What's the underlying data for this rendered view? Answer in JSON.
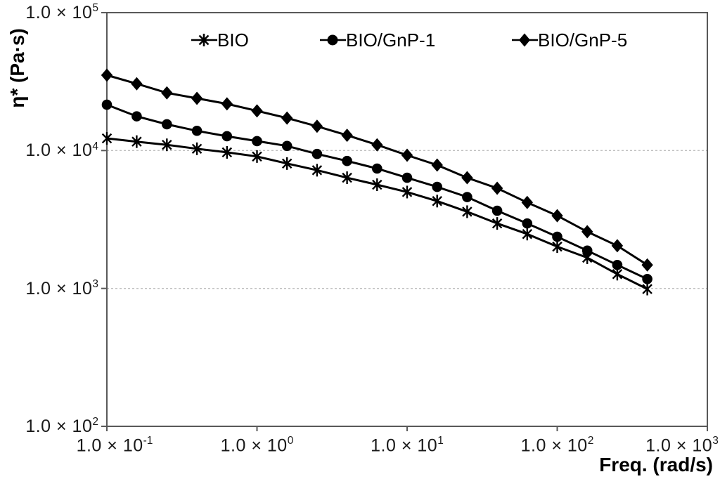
{
  "chart_data": {
    "type": "line",
    "title": "",
    "xlabel": "Freq. (rad/s)",
    "ylabel": "η* (Pa·s)",
    "x_scale": "log",
    "y_scale": "log",
    "xlim": [
      0.1,
      1000
    ],
    "ylim": [
      100,
      100000
    ],
    "grid": "horizontal-dashed",
    "gridline_values": [
      10000,
      1000
    ],
    "legend_position": "top-inside",
    "x": [
      0.1,
      0.158,
      0.251,
      0.398,
      0.631,
      1.0,
      1.585,
      2.512,
      3.981,
      6.31,
      10,
      15.85,
      25.12,
      39.81,
      63.1,
      100,
      158.5,
      251.2,
      398.1
    ],
    "series": [
      {
        "name": "BIO",
        "marker": "asterisk",
        "color": "#000000",
        "values": [
          12250,
          11600,
          11000,
          10300,
          9700,
          9050,
          8050,
          7200,
          6350,
          5650,
          5000,
          4300,
          3600,
          2960,
          2480,
          2010,
          1670,
          1270,
          990
        ]
      },
      {
        "name": "BIO/GnP-1",
        "marker": "circle",
        "color": "#000000",
        "values": [
          21500,
          17700,
          15500,
          13900,
          12700,
          11700,
          10800,
          9450,
          8400,
          7400,
          6350,
          5450,
          4600,
          3660,
          2960,
          2370,
          1880,
          1480,
          1170
        ]
      },
      {
        "name": "BIO/GnP-5",
        "marker": "diamond",
        "color": "#000000",
        "values": [
          35200,
          30500,
          26200,
          23900,
          21800,
          19400,
          17200,
          15000,
          12900,
          11000,
          9250,
          7850,
          6350,
          5330,
          4200,
          3370,
          2580,
          2040,
          1480
        ]
      }
    ],
    "x_ticks": [
      {
        "base": "1.0 × 10",
        "exp": "-1",
        "value": 0.1
      },
      {
        "base": "1.0 × 10",
        "exp": "0",
        "value": 1
      },
      {
        "base": "1.0 × 10",
        "exp": "1",
        "value": 10
      },
      {
        "base": "1.0 × 10",
        "exp": "2",
        "value": 100
      },
      {
        "base": "1.0 × 10",
        "exp": "3",
        "value": 1000
      }
    ],
    "y_ticks": [
      {
        "base": "1.0 × 10",
        "exp": "5",
        "value": 100000
      },
      {
        "base": "1.0 × 10",
        "exp": "4",
        "value": 10000
      },
      {
        "base": "1.0 × 10",
        "exp": "3",
        "value": 1000
      },
      {
        "base": "1.0 × 10",
        "exp": "2",
        "value": 100
      }
    ]
  },
  "colors": {
    "background": "#ffffff",
    "axis": "#595959",
    "gridline": "#c0c0c0",
    "series": "#000000",
    "text": "#1a1a1a"
  }
}
